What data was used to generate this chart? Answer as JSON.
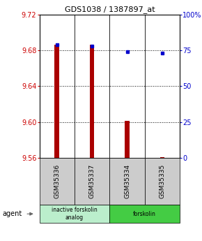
{
  "title": "GDS1038 / 1387897_at",
  "samples": [
    "GSM35336",
    "GSM35337",
    "GSM35334",
    "GSM35335"
  ],
  "red_values": [
    9.686,
    9.686,
    9.601,
    9.561
  ],
  "blue_values": [
    79,
    78,
    74,
    73
  ],
  "ylim_left": [
    9.56,
    9.72
  ],
  "ylim_right": [
    0,
    100
  ],
  "yticks_left": [
    9.56,
    9.6,
    9.64,
    9.68,
    9.72
  ],
  "yticks_right": [
    0,
    25,
    50,
    75,
    100
  ],
  "ytick_labels_right": [
    "0",
    "25",
    "50",
    "75",
    "100%"
  ],
  "bar_color": "#aa0000",
  "dot_color": "#0000cc",
  "bg_color": "#ffffff",
  "sample_box_color": "#bbbbbb",
  "group_colors": [
    "#bbeecc",
    "#44cc44"
  ],
  "group_labels": [
    "inactive forskolin\nanalog",
    "forskolin"
  ],
  "group_ranges": [
    [
      0,
      2
    ],
    [
      2,
      4
    ]
  ],
  "agent_label": "agent"
}
